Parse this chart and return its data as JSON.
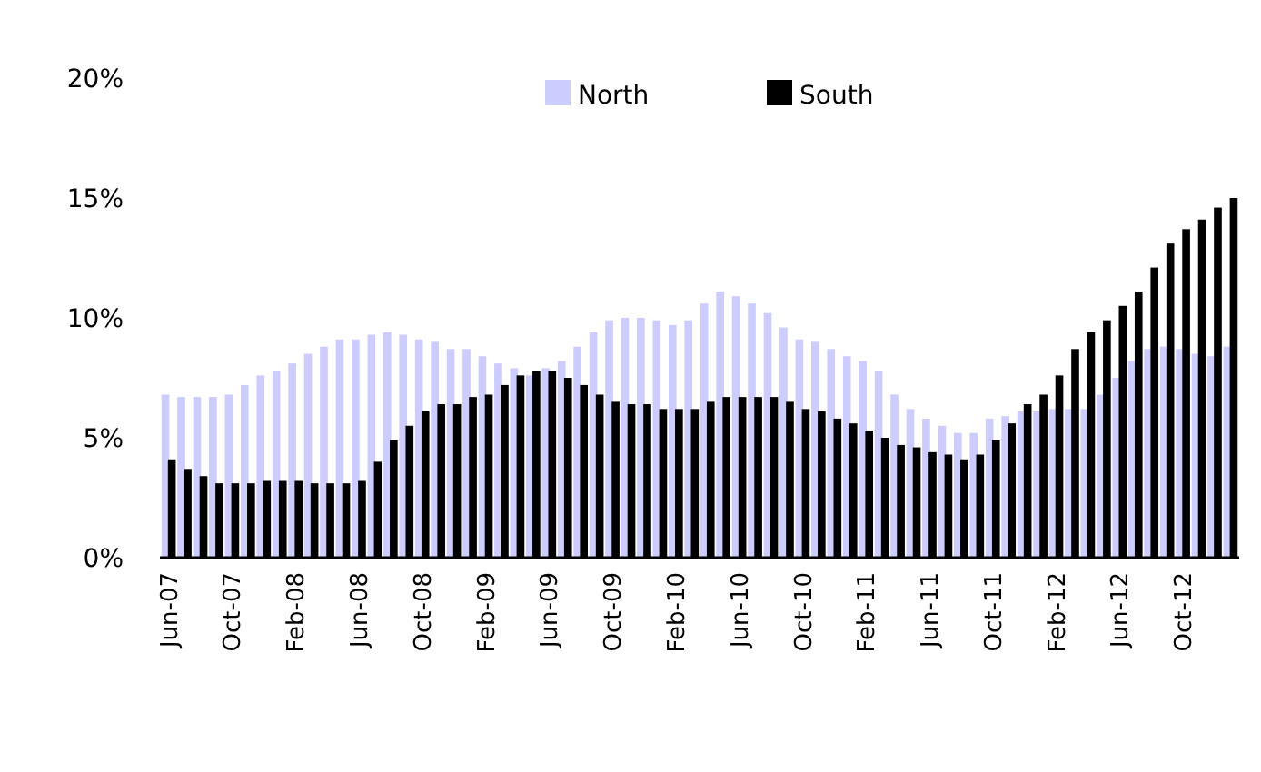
{
  "chart_data": {
    "type": "bar",
    "categories": [
      "Jun-07",
      null,
      null,
      null,
      "Oct-07",
      null,
      null,
      null,
      "Feb-08",
      null,
      null,
      null,
      "Jun-08",
      null,
      null,
      null,
      "Oct-08",
      null,
      null,
      null,
      "Feb-09",
      null,
      null,
      null,
      "Jun-09",
      null,
      null,
      null,
      "Oct-09",
      null,
      null,
      null,
      "Feb-10",
      null,
      null,
      null,
      "Jun-10",
      null,
      null,
      null,
      "Oct-10",
      null,
      null,
      null,
      "Feb-11",
      null,
      null,
      null,
      "Jun-11",
      null,
      null,
      null,
      "Oct-11",
      null,
      null,
      null,
      "Feb-12",
      null,
      null,
      null,
      "Jun-12",
      null,
      null,
      null,
      "Oct-12",
      null,
      null,
      null
    ],
    "series": [
      {
        "name": "North",
        "color": "#ccccff",
        "values": [
          6.8,
          6.7,
          6.7,
          6.7,
          6.8,
          7.2,
          7.6,
          7.8,
          8.1,
          8.5,
          8.8,
          9.1,
          9.1,
          9.3,
          9.4,
          9.3,
          9.1,
          9.0,
          8.7,
          8.7,
          8.4,
          8.1,
          7.9,
          7.6,
          7.9,
          8.2,
          8.8,
          9.4,
          9.9,
          10.0,
          10.0,
          9.9,
          9.7,
          9.9,
          10.6,
          11.1,
          10.9,
          10.6,
          10.2,
          9.6,
          9.1,
          9.0,
          8.7,
          8.4,
          8.2,
          7.8,
          6.8,
          6.2,
          5.8,
          5.5,
          5.2,
          5.2,
          5.8,
          5.9,
          6.1,
          6.1,
          6.2,
          6.2,
          6.2,
          6.8,
          7.5,
          8.2,
          8.7,
          8.8,
          8.7,
          8.5,
          8.4,
          8.8
        ]
      },
      {
        "name": "South",
        "color": "#000000",
        "values": [
          4.1,
          3.7,
          3.4,
          3.1,
          3.1,
          3.1,
          3.2,
          3.2,
          3.2,
          3.1,
          3.1,
          3.1,
          3.2,
          4.0,
          4.9,
          5.5,
          6.1,
          6.4,
          6.4,
          6.7,
          6.8,
          7.2,
          7.6,
          7.8,
          7.8,
          7.5,
          7.2,
          6.8,
          6.5,
          6.4,
          6.4,
          6.2,
          6.2,
          6.2,
          6.5,
          6.7,
          6.7,
          6.7,
          6.7,
          6.5,
          6.2,
          6.1,
          5.8,
          5.6,
          5.3,
          5.0,
          4.7,
          4.6,
          4.4,
          4.3,
          4.1,
          4.3,
          4.9,
          5.6,
          6.4,
          6.8,
          7.6,
          8.7,
          9.4,
          9.9,
          10.5,
          11.1,
          12.1,
          13.1,
          13.7,
          14.1,
          14.6,
          15.0
        ]
      }
    ],
    "ylim": [
      0,
      20
    ],
    "yticks": [
      {
        "value": 0,
        "label": "0%"
      },
      {
        "value": 5,
        "label": "5%"
      },
      {
        "value": 10,
        "label": "10%"
      },
      {
        "value": 15,
        "label": "15%"
      },
      {
        "value": 20,
        "label": "20%"
      }
    ],
    "grid": false,
    "legend": "top"
  }
}
